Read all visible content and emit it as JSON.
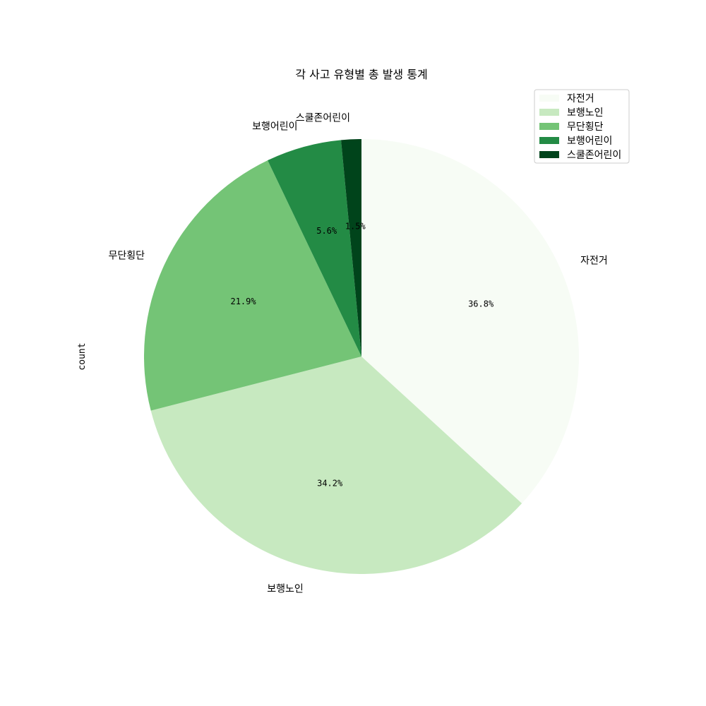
{
  "chart_data": {
    "type": "pie",
    "title": "각 사고 유형별 총 발생 통계",
    "ylabel": "count",
    "categories": [
      "자전거",
      "보행노인",
      "무단횡단",
      "보행어린이",
      "스쿨존어린이"
    ],
    "values": [
      36.8,
      34.2,
      21.9,
      5.6,
      1.5
    ],
    "percent_labels": [
      "36.8%",
      "34.2%",
      "21.9%",
      "5.6%",
      "1.5%"
    ],
    "colors": [
      "#f7fcf5",
      "#c7e9c0",
      "#74c476",
      "#238b45",
      "#00441b"
    ],
    "start_angle_deg": 90,
    "direction": "clockwise",
    "legend": {
      "position": "upper-right",
      "entries": [
        "자전거",
        "보행노인",
        "무단횡단",
        "보행어린이",
        "스쿨존어린이"
      ]
    }
  }
}
